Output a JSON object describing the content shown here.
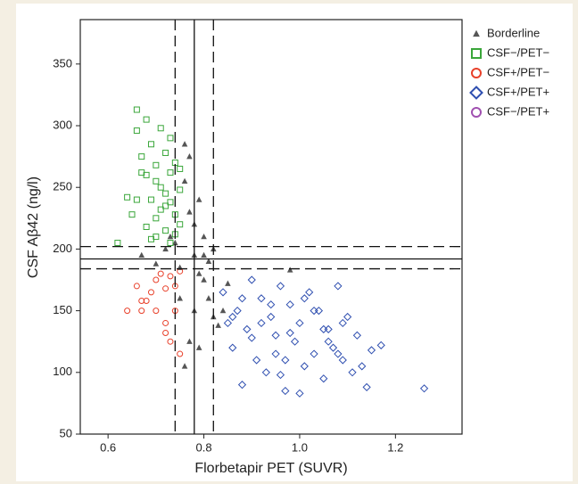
{
  "chart_data": {
    "type": "scatter",
    "x_label": "Florbetapir PET (SUVR)",
    "y_label": "CSF Aβ42 (ng/l)",
    "xlim": [
      0.542,
      1.339
    ],
    "ylim": [
      50,
      386
    ],
    "xticks": [
      0.6,
      0.8,
      {
        "value": 1,
        "label": "1.0"
      },
      1.2
    ],
    "yticks": [
      50,
      100,
      150,
      200,
      250,
      300,
      350
    ],
    "legend": "outside-right",
    "vlines": [
      {
        "value": 0.74,
        "style": "dashed"
      },
      {
        "value": 0.78,
        "style": "solid"
      },
      {
        "value": 0.82,
        "style": "dashed"
      }
    ],
    "hlines": [
      {
        "value": 202,
        "style": "dashed"
      },
      {
        "value": 192,
        "style": "solid"
      },
      {
        "value": 184,
        "style": "dashed"
      }
    ],
    "series": [
      {
        "name": "Borderline",
        "color": "#555555",
        "marker": "triangle",
        "x": [
          0.67,
          0.7,
          0.72,
          0.74,
          0.75,
          0.76,
          0.76,
          0.77,
          0.77,
          0.78,
          0.78,
          0.79,
          0.79,
          0.8,
          0.8,
          0.81,
          0.81,
          0.82,
          0.82,
          0.83,
          0.84,
          0.85,
          0.76,
          0.78,
          0.75,
          0.77,
          0.8,
          0.79,
          0.73,
          0.98
        ],
        "values": [
          195,
          188,
          200,
          205,
          185,
          285,
          255,
          275,
          230,
          220,
          195,
          180,
          240,
          210,
          175,
          190,
          160,
          200,
          145,
          138,
          150,
          172,
          105,
          150,
          160,
          125,
          195,
          120,
          210,
          183
        ]
      },
      {
        "name": "CSF−/PET−",
        "color": "#3aa63a",
        "marker": "square",
        "x": [
          0.62,
          0.66,
          0.66,
          0.67,
          0.68,
          0.68,
          0.69,
          0.69,
          0.7,
          0.7,
          0.7,
          0.71,
          0.71,
          0.72,
          0.72,
          0.72,
          0.73,
          0.73,
          0.73,
          0.74,
          0.74,
          0.74,
          0.75,
          0.75,
          0.66,
          0.67,
          0.69,
          0.71,
          0.72,
          0.7,
          0.68,
          0.73,
          0.75,
          0.64,
          0.65
        ],
        "values": [
          205,
          313,
          296,
          275,
          305,
          260,
          285,
          240,
          268,
          225,
          210,
          250,
          232,
          278,
          245,
          215,
          262,
          238,
          205,
          270,
          228,
          212,
          248,
          220,
          240,
          262,
          208,
          298,
          235,
          255,
          218,
          290,
          265,
          242,
          228
        ]
      },
      {
        "name": "CSF+/PET−",
        "color": "#e8402a",
        "marker": "circle",
        "x": [
          0.64,
          0.66,
          0.67,
          0.67,
          0.69,
          0.7,
          0.7,
          0.71,
          0.72,
          0.72,
          0.73,
          0.73,
          0.74,
          0.74,
          0.75,
          0.75,
          0.72,
          0.68
        ],
        "values": [
          150,
          170,
          158,
          150,
          165,
          175,
          150,
          180,
          168,
          140,
          178,
          125,
          170,
          150,
          182,
          115,
          132,
          158
        ]
      },
      {
        "name": "CSF+/PET+",
        "color": "#2f4fb0",
        "marker": "diamond",
        "x": [
          0.84,
          0.86,
          0.87,
          0.88,
          0.89,
          0.9,
          0.91,
          0.92,
          0.93,
          0.94,
          0.95,
          0.96,
          0.97,
          0.98,
          0.99,
          1.0,
          1.01,
          1.02,
          1.03,
          1.04,
          1.05,
          1.06,
          1.07,
          1.08,
          1.09,
          1.1,
          1.11,
          1.12,
          1.14,
          1.17,
          1.26,
          0.88,
          0.92,
          0.95,
          0.98,
          1.0,
          1.03,
          1.06,
          1.09,
          1.13,
          0.86,
          0.9,
          0.94,
          0.97,
          1.01,
          1.05,
          1.08,
          1.15,
          0.85,
          0.96
        ],
        "values": [
          165,
          120,
          150,
          90,
          135,
          175,
          110,
          160,
          100,
          145,
          130,
          170,
          85,
          155,
          125,
          140,
          105,
          165,
          115,
          150,
          95,
          135,
          120,
          170,
          110,
          145,
          100,
          130,
          88,
          122,
          87,
          160,
          140,
          115,
          132,
          83,
          150,
          125,
          140,
          105,
          145,
          128,
          155,
          110,
          160,
          135,
          115,
          118,
          140,
          98
        ]
      },
      {
        "name": "CSF−/PET+",
        "color": "#a050b0",
        "marker": "circle",
        "x": [],
        "values": []
      }
    ]
  }
}
